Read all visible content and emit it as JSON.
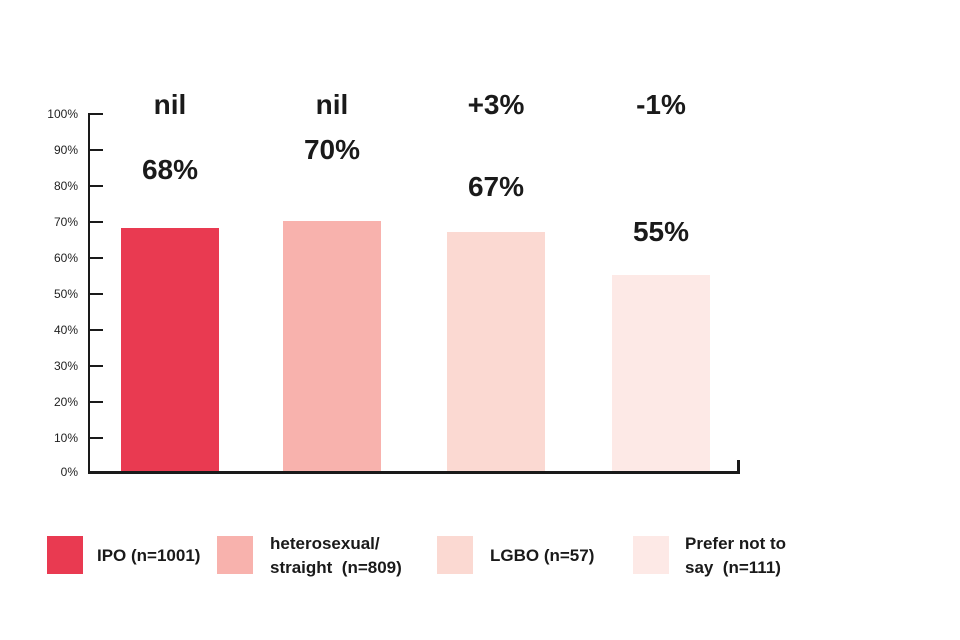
{
  "chart_data": {
    "type": "bar",
    "title": "",
    "xlabel": "",
    "ylabel": "",
    "categories": [
      "IPO",
      "heterosexual/straight",
      "LGBO",
      "Prefer not to say"
    ],
    "values": [
      68,
      70,
      67,
      55
    ],
    "bar_value_labels": [
      "68%",
      "70%",
      "67%",
      "55%"
    ],
    "delta_labels": [
      "nil",
      "nil",
      "+3%",
      "-1%"
    ],
    "sample_sizes": [
      "n=1001",
      "n=809",
      "n=57",
      "n=111"
    ],
    "colors": [
      "#E93A51",
      "#F8B2AD",
      "#FBD9D2",
      "#FDE9E6"
    ],
    "ylim": [
      0,
      100
    ],
    "ytick_labels": [
      "100%",
      "90%",
      "80%",
      "70%",
      "60%",
      "50%",
      "40%",
      "30%",
      "20%",
      "10%",
      "0%"
    ],
    "grid": false,
    "legend_position": "bottom",
    "legend": [
      {
        "lines": [
          "IPO (n=1001)"
        ]
      },
      {
        "lines": [
          "heterosexual/",
          "straight  (n=809)"
        ]
      },
      {
        "lines": [
          "LGBO (n=57)"
        ]
      },
      {
        "lines": [
          "Prefer not to",
          "say  (n=111)"
        ]
      }
    ],
    "axis_color": "#1a1a1a",
    "text_color": "#1a1a1a"
  }
}
